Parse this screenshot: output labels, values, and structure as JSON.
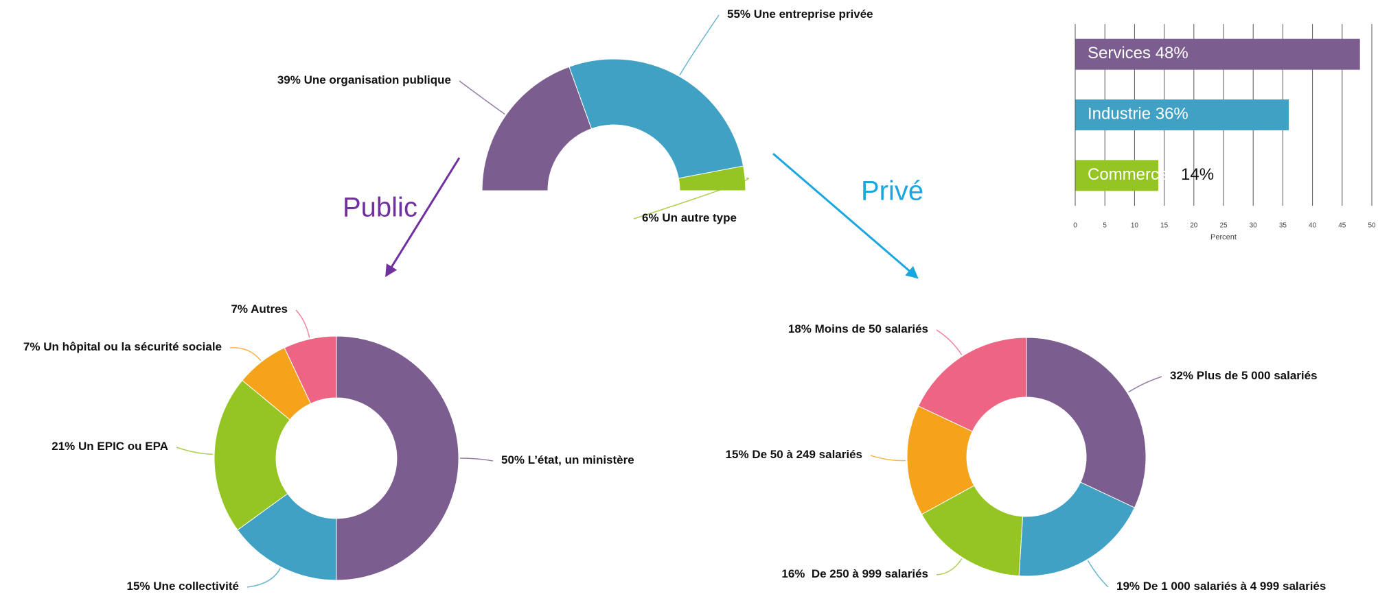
{
  "chart_data": [
    {
      "type": "donut",
      "semicircle": true,
      "categories": [
        "Une organisation publique",
        "Une entreprise privée",
        "Un autre type"
      ],
      "values": [
        39,
        55,
        6
      ],
      "value_labels": [
        "39%",
        "55%",
        "6%"
      ],
      "colors": [
        "#7b5e8f",
        "#40a1c4",
        "#95c523"
      ]
    },
    {
      "type": "bar",
      "orientation": "horizontal",
      "categories": [
        "Services",
        "Industrie",
        "Commerces"
      ],
      "values": [
        48,
        36,
        14
      ],
      "value_labels": [
        "48%",
        "36%",
        "14%"
      ],
      "colors": [
        "#7b5e8f",
        "#40a1c4",
        "#95c523"
      ],
      "xlabel": "Percent",
      "xlim": [
        0,
        50
      ],
      "xticks": [
        0,
        5,
        10,
        15,
        20,
        25,
        30,
        35,
        40,
        45,
        50
      ],
      "grid": true
    },
    {
      "type": "donut",
      "categories": [
        "L’état, un ministère",
        "Une collectivité",
        "Un EPIC ou EPA",
        "Un hôpital ou la sécurité sociale",
        "Autres"
      ],
      "values": [
        50,
        15,
        21,
        7,
        7
      ],
      "value_labels": [
        "50%",
        "15%",
        "21%",
        "7%",
        "7%"
      ],
      "colors": [
        "#7b5e8f",
        "#40a1c4",
        "#95c523",
        "#f5a31a",
        "#ee6584"
      ]
    },
    {
      "type": "donut",
      "categories": [
        "Plus de 5 000 salariés",
        "De 1 000 salariés à 4 999 salariés",
        " De 250 à 999 salariés",
        "De 50 à 249 salariés",
        "Moins de 50 salariés"
      ],
      "values": [
        32,
        19,
        16,
        15,
        18
      ],
      "value_labels": [
        "32%",
        "19%",
        "16%",
        "15%",
        "18%"
      ],
      "colors": [
        "#7b5e8f",
        "#40a1c4",
        "#95c523",
        "#f5a31a",
        "#ee6584"
      ]
    }
  ],
  "branches": [
    {
      "label": "Public"
    },
    {
      "label": "Privé"
    }
  ]
}
